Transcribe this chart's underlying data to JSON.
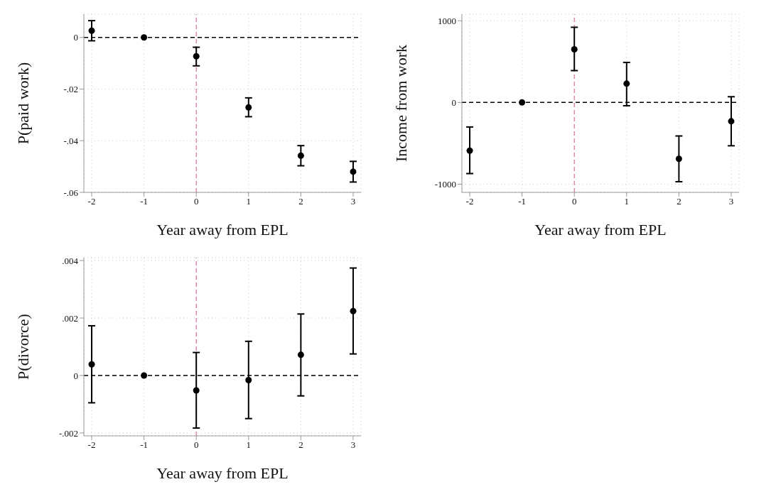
{
  "chart_data": [
    {
      "type": "scatter",
      "xlabel": "Year away from EPL",
      "ylabel": "P(paid work)",
      "x": [
        -2,
        -1,
        0,
        1,
        2,
        3
      ],
      "marker": "circle",
      "grid": true,
      "series": [
        {
          "color": "#000000",
          "values": [
            0.0026,
            0,
            -0.0073,
            -0.0271,
            -0.0458,
            -0.052
          ],
          "errors": [
            [
              -0.0013,
              0.0065
            ],
            null,
            [
              -0.011,
              -0.0038
            ],
            [
              -0.0307,
              -0.0234
            ],
            [
              -0.0497,
              -0.0419
            ],
            [
              -0.056,
              -0.048
            ]
          ]
        }
      ],
      "xlim": [
        -2.15,
        3.15
      ],
      "xticks": [
        -2,
        -1,
        0,
        1,
        2,
        3
      ],
      "ylim": [
        -0.06,
        0.009
      ],
      "yticks": [
        {
          "value": -0.06,
          "label": "-.06"
        },
        {
          "value": -0.04,
          "label": "-.04"
        },
        {
          "value": -0.02,
          "label": "-.02"
        },
        0
      ],
      "ref_lines": [
        {
          "axis": "y",
          "value": 0,
          "color": "#000000",
          "line_style": "dashed"
        },
        {
          "axis": "x",
          "value": 0,
          "color": "#d96fa5",
          "line_style": "dashed"
        }
      ]
    },
    {
      "type": "scatter",
      "xlabel": "Year away from EPL",
      "ylabel": "Income from work",
      "x": [
        -2,
        -1,
        0,
        1,
        2,
        3
      ],
      "marker": "circle",
      "grid": true,
      "series": [
        {
          "color": "#000000",
          "values": [
            -590,
            0,
            650,
            230,
            -690,
            -230
          ],
          "errors": [
            [
              -870,
              -300
            ],
            null,
            [
              390,
              920
            ],
            [
              -40,
              490
            ],
            [
              -970,
              -410
            ],
            [
              -530,
              70
            ]
          ]
        }
      ],
      "xlim": [
        -2.15,
        3.15
      ],
      "xticks": [
        -2,
        -1,
        0,
        1,
        2,
        3
      ],
      "ylim": [
        -1100,
        1080
      ],
      "yticks": [
        -1000,
        0,
        1000
      ],
      "ref_lines": [
        {
          "axis": "y",
          "value": 0,
          "color": "#000000",
          "line_style": "dashed"
        },
        {
          "axis": "x",
          "value": 0,
          "color": "#d96fa5",
          "line_style": "dashed"
        }
      ]
    },
    {
      "type": "scatter",
      "xlabel": "Year away from EPL",
      "ylabel": "P(divorce)",
      "x": [
        -2,
        -1,
        0,
        1,
        2,
        3
      ],
      "marker": "circle",
      "grid": true,
      "series": [
        {
          "color": "#000000",
          "values": [
            0.00039,
            0,
            -0.00052,
            -0.00016,
            0.00072,
            0.00224
          ],
          "errors": [
            [
              -0.00095,
              0.00173
            ],
            null,
            [
              -0.00183,
              0.0008
            ],
            [
              -0.0015,
              0.00119
            ],
            [
              -0.00071,
              0.00214
            ],
            [
              0.00075,
              0.00374
            ]
          ]
        }
      ],
      "xlim": [
        -2.15,
        3.15
      ],
      "xticks": [
        -2,
        -1,
        0,
        1,
        2,
        3
      ],
      "ylim": [
        -0.0021,
        0.0041
      ],
      "yticks": [
        {
          "value": -0.002,
          "label": "-.002"
        },
        0,
        {
          "value": 0.002,
          "label": ".002"
        },
        {
          "value": 0.004,
          "label": ".004"
        }
      ],
      "ref_lines": [
        {
          "axis": "y",
          "value": 0,
          "color": "#000000",
          "line_style": "dashed"
        },
        {
          "axis": "x",
          "value": 0,
          "color": "#d96fa5",
          "line_style": "dashed"
        }
      ]
    }
  ]
}
